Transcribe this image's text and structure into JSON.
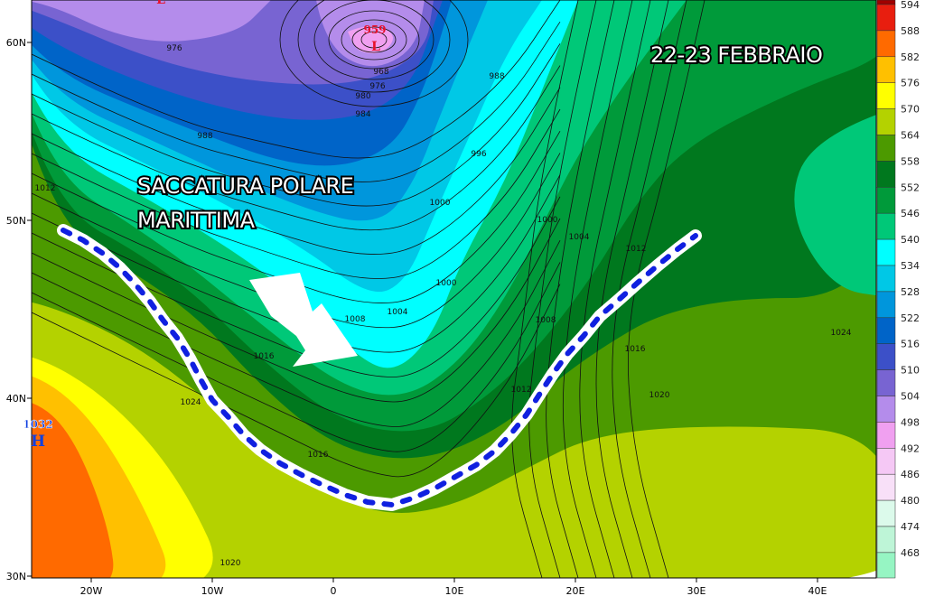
{
  "map": {
    "title": "22-23 FEBBRAIO",
    "annotation_line1": "SACCATURA POLARE",
    "annotation_line2": "MARITTIMA",
    "lows": [
      {
        "pressure": "959",
        "symbol": "L"
      },
      {
        "pressure": "",
        "symbol": "L"
      }
    ],
    "highs": [
      {
        "pressure": "1032",
        "symbol": "H"
      }
    ],
    "isobar_labels": [
      "976",
      "968",
      "976",
      "980",
      "984",
      "988",
      "988",
      "996",
      "1000",
      "1000",
      "1004",
      "1012",
      "1000",
      "1004",
      "1008",
      "1008",
      "1012",
      "1016",
      "1020",
      "1024",
      "1016",
      "1024",
      "1016",
      "1012",
      "1020"
    ],
    "lon_ticks": [
      "20W",
      "10W",
      "0",
      "10E",
      "20E",
      "30E",
      "40E"
    ],
    "lat_ticks": [
      "60N",
      "50N",
      "40N",
      "30N"
    ],
    "trough_line_color": "#1020e0",
    "low_color": "#e8102a",
    "high_color": "#1040e0"
  },
  "legend": {
    "unit_levels": [
      {
        "value": "594",
        "color": "#e81e0f"
      },
      {
        "value": "588",
        "color": "#ff6a00"
      },
      {
        "value": "582",
        "color": "#ffc000"
      },
      {
        "value": "576",
        "color": "#ffff00"
      },
      {
        "value": "570",
        "color": "#b4d200"
      },
      {
        "value": "564",
        "color": "#4c9a00"
      },
      {
        "value": "558",
        "color": "#00781e"
      },
      {
        "value": "552",
        "color": "#009a3a"
      },
      {
        "value": "546",
        "color": "#00c878"
      },
      {
        "value": "540",
        "color": "#00ffff"
      },
      {
        "value": "534",
        "color": "#00c8e6"
      },
      {
        "value": "528",
        "color": "#0096dc"
      },
      {
        "value": "522",
        "color": "#0064c8"
      },
      {
        "value": "516",
        "color": "#3c50c8"
      },
      {
        "value": "510",
        "color": "#7864d2"
      },
      {
        "value": "504",
        "color": "#b48ceb"
      },
      {
        "value": "498",
        "color": "#f0a0f0"
      },
      {
        "value": "492",
        "color": "#f5c8f5"
      },
      {
        "value": "486",
        "color": "#f8e0f8"
      },
      {
        "value": "480",
        "color": "#dcfaeb"
      },
      {
        "value": "474",
        "color": "#bef5d7"
      },
      {
        "value": "468",
        "color": "#96f5c3"
      }
    ],
    "top_color": "#a00000"
  }
}
